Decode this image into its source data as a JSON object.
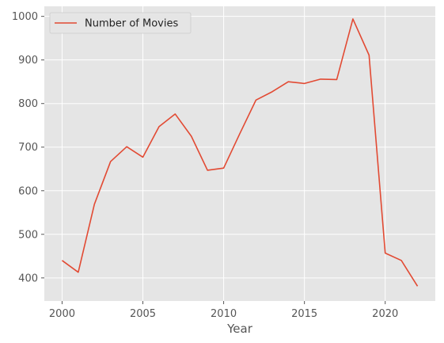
{
  "chart_data": {
    "type": "line",
    "xlabel": "Year",
    "ylabel": "",
    "xlim": [
      1998.9,
      2023.1
    ],
    "ylim": [
      347,
      1023
    ],
    "x_ticks": [
      2000,
      2005,
      2010,
      2015,
      2020
    ],
    "y_ticks": [
      400,
      500,
      600,
      700,
      800,
      900,
      1000
    ],
    "grid": true,
    "legend_position": "top-left",
    "colors": {
      "series": "#E24A33",
      "background": "#E5E5E5",
      "grid": "#FFFFFF"
    },
    "series": [
      {
        "name": "Number of Movies",
        "x": [
          2000,
          2001,
          2002,
          2003,
          2004,
          2005,
          2006,
          2007,
          2008,
          2009,
          2010,
          2011,
          2012,
          2013,
          2014,
          2015,
          2016,
          2017,
          2018,
          2019,
          2020,
          2021,
          2022
        ],
        "values": [
          440,
          413,
          569,
          667,
          701,
          677,
          747,
          776,
          725,
          647,
          652,
          731,
          808,
          827,
          850,
          846,
          856,
          855,
          994,
          911,
          457,
          440,
          381
        ]
      }
    ]
  }
}
